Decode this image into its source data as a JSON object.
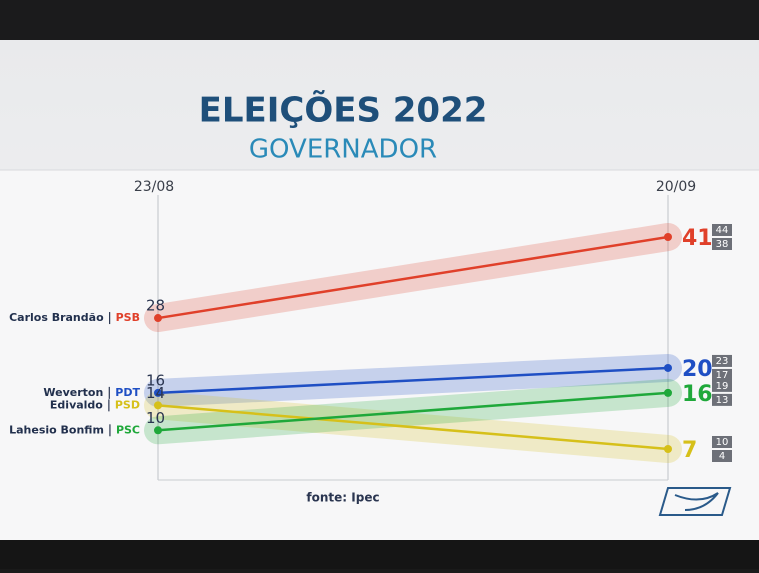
{
  "chart_data": {
    "type": "line",
    "title": "ELEIÇÕES 2022",
    "subtitle": "GOVERNADOR",
    "categories": [
      "23/08",
      "20/09"
    ],
    "series": [
      {
        "name": "Carlos Brandão",
        "party": "PSB",
        "color": "#e0402a",
        "values": [
          28,
          41
        ],
        "high": 44,
        "low": 38
      },
      {
        "name": "Weverton",
        "party": "PDT",
        "color": "#1f4fc4",
        "values": [
          16,
          20
        ],
        "high": 23,
        "low": 17
      },
      {
        "name": "Edivaldo",
        "party": "PSD",
        "color": "#d6c01a",
        "values": [
          14,
          7
        ],
        "high": 10,
        "low": 4
      },
      {
        "name": "Lahesio Bonfim",
        "party": "PSC",
        "color": "#1fa83a",
        "values": [
          10,
          16
        ],
        "high": 19,
        "low": 13
      }
    ],
    "source": "fonte: Ipec"
  }
}
